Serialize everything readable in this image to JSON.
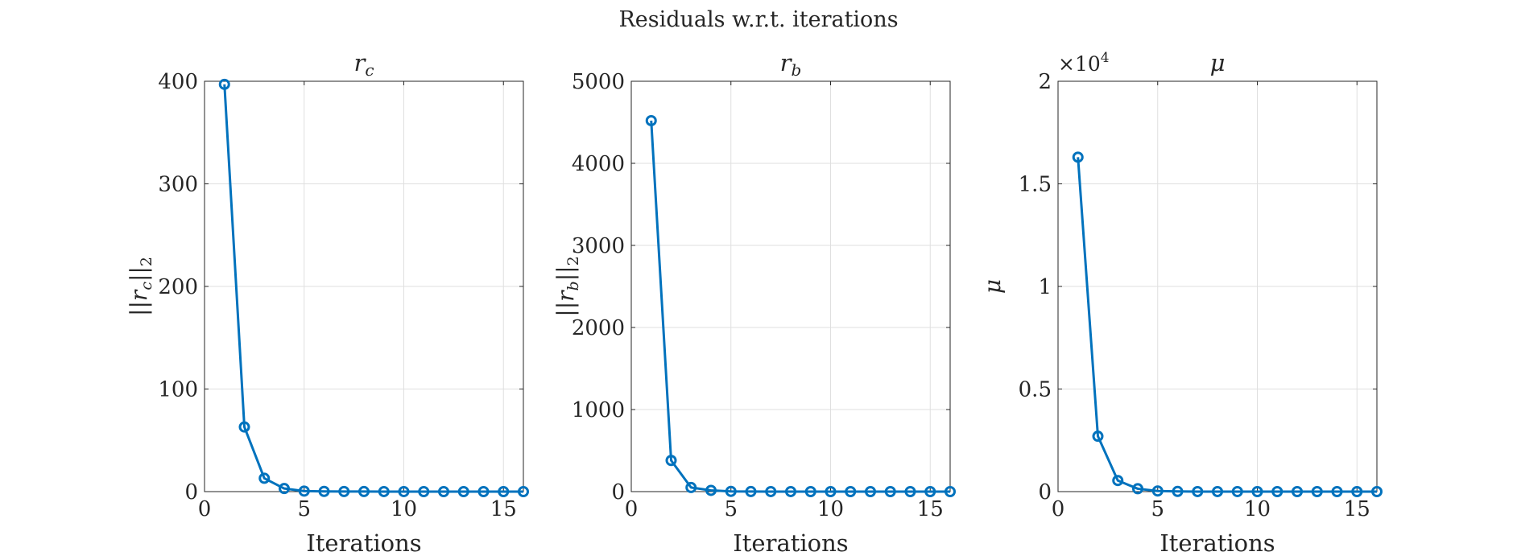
{
  "figure": {
    "title": "Residuals w.r.t. iterations",
    "line_color": "#0072BD"
  },
  "chart_data": [
    {
      "type": "line",
      "title_main": "r",
      "title_sub": "c",
      "xlabel": "Iterations",
      "ylabel": "||r_c||_2",
      "ylabel_display": {
        "pre": "||",
        "var": "r",
        "sub": "c",
        "mid": "||",
        "sub2": "2"
      },
      "xlim": [
        0,
        16
      ],
      "ylim": [
        0,
        400
      ],
      "xticks": [
        0,
        5,
        10,
        15
      ],
      "yticks": [
        0,
        100,
        200,
        300,
        400
      ],
      "ytick_labels": [
        "0",
        "100",
        "200",
        "300",
        "400"
      ],
      "grid": true,
      "x": [
        1,
        2,
        3,
        4,
        5,
        6,
        7,
        8,
        9,
        10,
        11,
        12,
        13,
        14,
        15,
        16
      ],
      "y": [
        397,
        63,
        13,
        3,
        0.5,
        0.2,
        0.1,
        0.05,
        0.02,
        0.01,
        0,
        0,
        0,
        0,
        0,
        0
      ]
    },
    {
      "type": "line",
      "title_main": "r",
      "title_sub": "b",
      "xlabel": "Iterations",
      "ylabel": "||r_b||_2",
      "ylabel_display": {
        "pre": "||",
        "var": "r",
        "sub": "b",
        "mid": "||",
        "sub2": "2"
      },
      "xlim": [
        0,
        16
      ],
      "ylim": [
        0,
        5000
      ],
      "xticks": [
        0,
        5,
        10,
        15
      ],
      "yticks": [
        0,
        1000,
        2000,
        3000,
        4000,
        5000
      ],
      "ytick_labels": [
        "0",
        "1000",
        "2000",
        "3000",
        "4000",
        "5000"
      ],
      "grid": true,
      "x": [
        1,
        2,
        3,
        4,
        5,
        6,
        7,
        8,
        9,
        10,
        11,
        12,
        13,
        14,
        15,
        16
      ],
      "y": [
        4520,
        380,
        50,
        15,
        3,
        1,
        0.5,
        0.2,
        0.1,
        0.05,
        0,
        0,
        0,
        0,
        0,
        0
      ]
    },
    {
      "type": "line",
      "title_main": "μ",
      "title_sub": "",
      "xlabel": "Iterations",
      "ylabel": "μ",
      "ylabel_display": {
        "pre": "",
        "var": "μ",
        "sub": "",
        "mid": "",
        "sub2": ""
      },
      "exponent_label": {
        "base": "×10",
        "power": "4"
      },
      "xlim": [
        0,
        16
      ],
      "ylim": [
        0,
        20000
      ],
      "xticks": [
        0,
        5,
        10,
        15
      ],
      "yticks": [
        0,
        5000,
        10000,
        15000,
        20000
      ],
      "ytick_labels": [
        "0",
        "0.5",
        "1",
        "1.5",
        "2"
      ],
      "grid": true,
      "x": [
        1,
        2,
        3,
        4,
        5,
        6,
        7,
        8,
        9,
        10,
        11,
        12,
        13,
        14,
        15,
        16
      ],
      "y": [
        16300,
        2700,
        540,
        140,
        30,
        8,
        2,
        1,
        0.5,
        0.2,
        0,
        0,
        0,
        0,
        0,
        0
      ]
    }
  ]
}
